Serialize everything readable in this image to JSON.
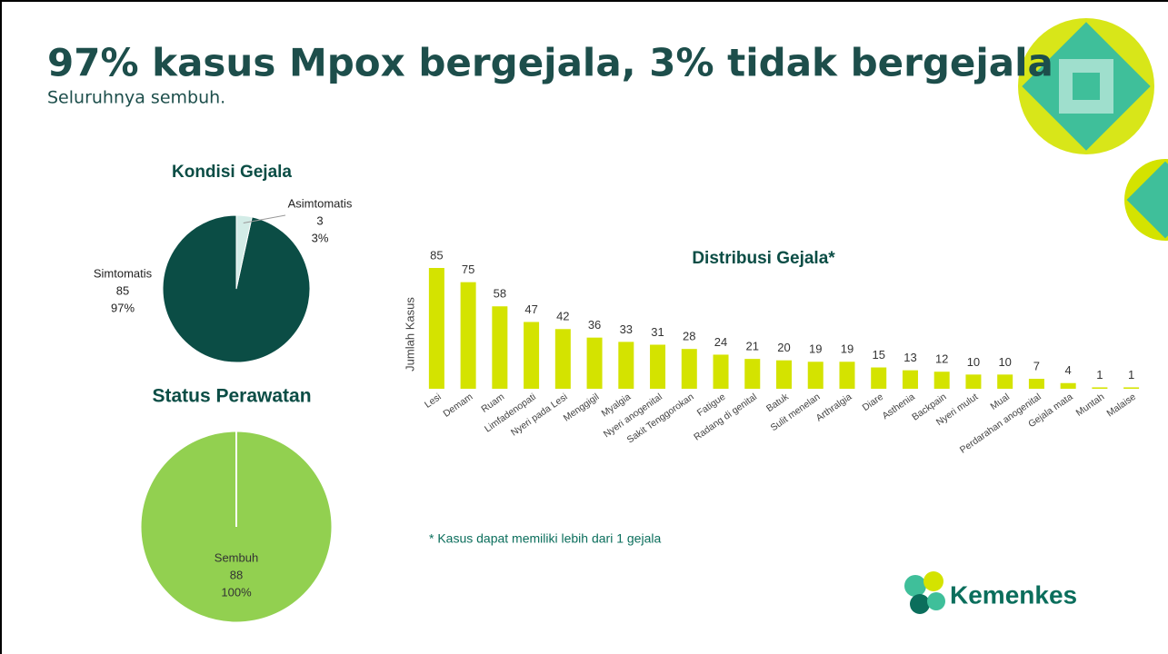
{
  "title": "97% kasus Mpox bergejala, 3% tidak bergejala",
  "subtitle": "Seluruhnya sembuh.",
  "footnote": "* Kasus dapat memiliki lebih dari 1 gejala",
  "logo": "Kemenkes",
  "chart_data": [
    {
      "type": "pie",
      "title": "Kondisi Gejala",
      "categories": [
        "Simtomatis",
        "Asimtomatis"
      ],
      "values": [
        85,
        3
      ],
      "percent_labels": [
        "97%",
        "3%"
      ],
      "colors": [
        "#0b4d45",
        "#d3ece7"
      ]
    },
    {
      "type": "pie",
      "title": "Status Perawatan",
      "categories": [
        "Sembuh"
      ],
      "values": [
        88
      ],
      "percent_labels": [
        "100%"
      ],
      "colors": [
        "#92d050"
      ]
    },
    {
      "type": "bar",
      "title": "Distribusi Gejala*",
      "ylabel": "Jumlah Kasus",
      "categories": [
        "Lesi",
        "Demam",
        "Ruam",
        "Limfadenopati",
        "Nyeri pada Lesi",
        "Menggigil",
        "Myalgia",
        "Nyeri anogenital",
        "Sakit Tenggorokan",
        "Fatigue",
        "Radang di genital",
        "Batuk",
        "Sulit menelan",
        "Arthralgia",
        "Diare",
        "Asthenia",
        "Backpain",
        "Nyeri mulut",
        "Mual",
        "Perdarahan anogenital",
        "Gejala mata",
        "Muntah",
        "Malaise"
      ],
      "values": [
        85,
        75,
        58,
        47,
        42,
        36,
        33,
        31,
        28,
        24,
        21,
        20,
        19,
        19,
        15,
        13,
        12,
        10,
        10,
        7,
        4,
        1,
        1
      ],
      "color": "#d4e300",
      "ylim": [
        0,
        85
      ]
    }
  ]
}
